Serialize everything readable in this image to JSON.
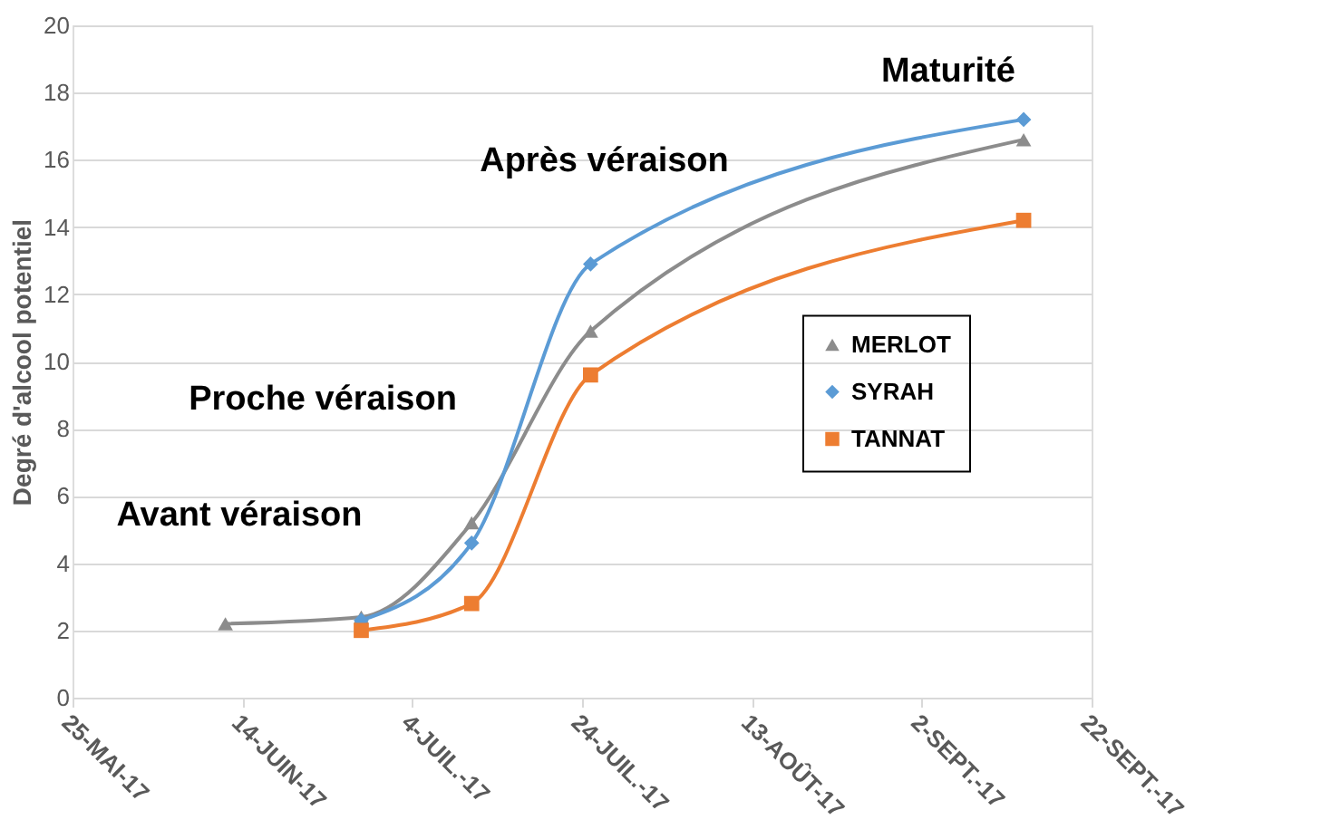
{
  "chart_data": {
    "type": "line",
    "ylabel": "Degré d'alcool potentiel",
    "xlim": [
      "2017-05-25",
      "2017-09-22"
    ],
    "xticks": [
      {
        "value": "2017-05-25",
        "label": "25-MAI-17"
      },
      {
        "value": "2017-06-14",
        "label": "14-JUIN-17"
      },
      {
        "value": "2017-07-04",
        "label": "4-JUIL.-17"
      },
      {
        "value": "2017-07-24",
        "label": "24-JUIL.-17"
      },
      {
        "value": "2017-08-13",
        "label": "13-AOÛT-17"
      },
      {
        "value": "2017-09-02",
        "label": "2-SEPT.-17"
      },
      {
        "value": "2017-09-22",
        "label": "22-SEPT.-17"
      }
    ],
    "ylim": [
      0,
      20
    ],
    "yticks": [
      0,
      2,
      4,
      6,
      8,
      10,
      12,
      14,
      16,
      18,
      20
    ],
    "grid": "y",
    "legend": "right",
    "series": [
      {
        "name": "MERLOT",
        "color": "#8c8c8c",
        "marker": "triangle",
        "x": [
          "2017-06-12",
          "2017-06-28",
          "2017-07-11",
          "2017-07-25",
          "2017-09-14"
        ],
        "values": [
          2.2,
          2.4,
          5.2,
          10.9,
          16.6
        ]
      },
      {
        "name": "SYRAH",
        "color": "#5b9bd5",
        "marker": "diamond",
        "x": [
          "2017-06-28",
          "2017-07-11",
          "2017-07-25",
          "2017-09-14"
        ],
        "values": [
          2.3,
          4.6,
          12.9,
          17.2
        ]
      },
      {
        "name": "TANNAT",
        "color": "#ed7d31",
        "marker": "square",
        "x": [
          "2017-06-28",
          "2017-07-11",
          "2017-07-25",
          "2017-09-14"
        ],
        "values": [
          2.0,
          2.8,
          9.6,
          14.2
        ]
      }
    ],
    "annotations": [
      "Avant véraison",
      "Proche véraison",
      "Après véraison",
      "Maturité"
    ]
  }
}
